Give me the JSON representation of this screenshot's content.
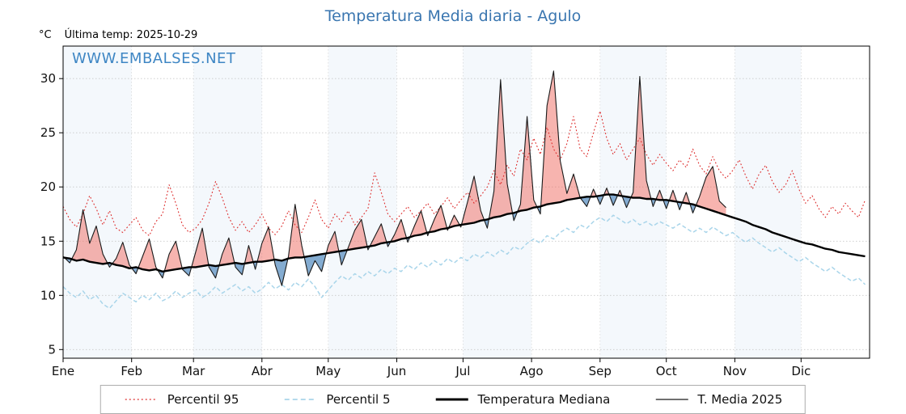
{
  "header": {
    "title": "Temperatura Media diaria - Agulo",
    "unit": "°C",
    "last_temp": "Última temp: 2025-10-29",
    "watermark": "WWW.EMBALSES.NET"
  },
  "colors": {
    "title": "#3a76b0",
    "watermark": "#3e86c4",
    "percentil95": "#dd2c2c",
    "percentil5": "#a9d5ea",
    "mediana": "#000000",
    "t_media_2025": "#1a1a1a",
    "fill_above": "#ef6a5f",
    "fill_below": "#6f9ec9",
    "band": "#ecf4fa",
    "grid": "#c8c8c8",
    "axis": "#000000"
  },
  "legend": {
    "items": [
      {
        "label": "Percentil 95"
      },
      {
        "label": "Percentil 5"
      },
      {
        "label": "Temperatura Mediana"
      },
      {
        "label": "T. Media 2025"
      }
    ]
  },
  "chart_data": {
    "type": "line",
    "title": "Temperatura Media diaria - Agulo",
    "xlabel": "",
    "ylabel": "°C",
    "ylim": [
      4.2,
      33.0
    ],
    "yticks": [
      5,
      10,
      15,
      20,
      25,
      30
    ],
    "grid": true,
    "legend_position": "bottom",
    "x_unit": "day_of_year",
    "months": [
      "Ene",
      "Feb",
      "Mar",
      "Abr",
      "May",
      "Jun",
      "Jul",
      "Ago",
      "Sep",
      "Oct",
      "Nov",
      "Dic"
    ],
    "month_start_days": [
      0,
      31,
      59,
      90,
      120,
      151,
      181,
      212,
      243,
      273,
      304,
      334
    ],
    "step_days": 3,
    "series": [
      {
        "name": "Percentil 95",
        "style": "dotted",
        "color": "#dd2c2c",
        "values": [
          18.2,
          17.0,
          16.3,
          17.5,
          19.2,
          18.0,
          16.5,
          17.8,
          16.2,
          15.8,
          16.5,
          17.2,
          16.0,
          15.5,
          16.8,
          17.5,
          20.2,
          18.5,
          16.5,
          15.8,
          16.2,
          17.0,
          18.5,
          20.5,
          19.0,
          17.2,
          16.0,
          16.8,
          15.8,
          16.5,
          17.5,
          16.2,
          15.6,
          16.4,
          17.8,
          16.5,
          15.8,
          17.2,
          18.8,
          17.0,
          16.2,
          17.5,
          16.8,
          17.8,
          16.5,
          17.2,
          18.0,
          21.3,
          19.5,
          17.5,
          16.8,
          17.5,
          18.2,
          17.2,
          17.8,
          18.5,
          17.5,
          18.2,
          19.0,
          18.0,
          18.8,
          19.5,
          18.5,
          19.2,
          20.0,
          21.5,
          20.2,
          22.0,
          21.0,
          23.5,
          22.5,
          24.5,
          23.0,
          25.5,
          23.5,
          22.5,
          24.0,
          26.5,
          23.5,
          22.8,
          25.0,
          27.0,
          24.5,
          23.0,
          24.0,
          22.5,
          23.5,
          24.5,
          23.0,
          22.0,
          23.0,
          22.2,
          21.5,
          22.5,
          21.8,
          23.5,
          22.0,
          21.2,
          22.8,
          21.5,
          20.8,
          21.5,
          22.5,
          21.0,
          19.8,
          21.2,
          22.0,
          20.5,
          19.5,
          20.2,
          21.5,
          19.8,
          18.5,
          19.2,
          18.0,
          17.2,
          18.2,
          17.5,
          18.5,
          17.8,
          17.2,
          18.8
        ]
      },
      {
        "name": "Percentil 5",
        "style": "dashed",
        "color": "#a9d5ea",
        "values": [
          10.8,
          10.2,
          9.8,
          10.4,
          9.6,
          10.0,
          9.2,
          8.8,
          9.5,
          10.2,
          9.8,
          9.4,
          10.0,
          9.6,
          10.2,
          9.5,
          9.8,
          10.4,
          9.8,
          10.2,
          10.5,
          9.8,
          10.2,
          10.8,
          10.2,
          10.6,
          11.0,
          10.4,
          10.8,
          10.2,
          10.6,
          11.2,
          10.6,
          11.0,
          10.5,
          11.2,
          10.8,
          11.5,
          10.8,
          9.8,
          10.5,
          11.2,
          11.8,
          11.4,
          12.0,
          11.6,
          12.2,
          11.8,
          12.4,
          12.0,
          12.5,
          12.2,
          12.8,
          12.4,
          13.0,
          12.6,
          13.2,
          12.8,
          13.4,
          13.0,
          13.5,
          13.2,
          13.8,
          13.5,
          14.0,
          13.6,
          14.2,
          13.8,
          14.5,
          14.2,
          14.8,
          15.2,
          14.8,
          15.5,
          15.2,
          15.8,
          16.2,
          15.8,
          16.5,
          16.2,
          16.8,
          17.2,
          16.8,
          17.4,
          17.0,
          16.6,
          17.0,
          16.5,
          16.8,
          16.4,
          16.8,
          16.5,
          16.2,
          16.6,
          16.2,
          15.8,
          16.2,
          15.8,
          16.3,
          15.9,
          15.5,
          15.8,
          15.3,
          14.9,
          15.3,
          14.8,
          14.4,
          14.0,
          14.4,
          13.9,
          13.5,
          13.1,
          13.5,
          13.0,
          12.6,
          12.2,
          12.6,
          12.1,
          11.7,
          11.3,
          11.6,
          11.0
        ]
      },
      {
        "name": "Temperatura Mediana",
        "style": "solid-thick",
        "color": "#000000",
        "values": [
          13.5,
          13.4,
          13.2,
          13.3,
          13.1,
          13.0,
          12.9,
          13.0,
          12.8,
          12.7,
          12.5,
          12.6,
          12.4,
          12.3,
          12.4,
          12.2,
          12.3,
          12.4,
          12.5,
          12.6,
          12.6,
          12.7,
          12.8,
          12.7,
          12.8,
          12.9,
          13.0,
          12.9,
          13.0,
          13.1,
          13.1,
          13.2,
          13.3,
          13.2,
          13.4,
          13.5,
          13.5,
          13.6,
          13.7,
          13.8,
          13.9,
          14.0,
          14.1,
          14.2,
          14.3,
          14.4,
          14.5,
          14.6,
          14.8,
          14.9,
          15.0,
          15.2,
          15.3,
          15.5,
          15.6,
          15.8,
          15.9,
          16.1,
          16.2,
          16.4,
          16.5,
          16.6,
          16.7,
          16.9,
          17.0,
          17.2,
          17.3,
          17.5,
          17.6,
          17.8,
          17.9,
          18.1,
          18.2,
          18.4,
          18.5,
          18.6,
          18.8,
          18.9,
          19.0,
          19.1,
          19.1,
          19.2,
          19.3,
          19.3,
          19.2,
          19.1,
          19.0,
          19.0,
          18.9,
          18.9,
          18.8,
          18.8,
          18.7,
          18.6,
          18.5,
          18.4,
          18.2,
          18.0,
          17.8,
          17.6,
          17.4,
          17.2,
          17.0,
          16.8,
          16.5,
          16.3,
          16.1,
          15.8,
          15.6,
          15.4,
          15.2,
          15.0,
          14.8,
          14.7,
          14.5,
          14.3,
          14.2,
          14.0,
          13.9,
          13.8,
          13.7,
          13.6
        ]
      },
      {
        "name": "T. Media 2025",
        "style": "solid-thin",
        "color": "#1a1a1a",
        "ends_day": 300,
        "values": [
          13.6,
          13.0,
          14.2,
          17.9,
          14.8,
          16.4,
          13.8,
          12.6,
          13.4,
          14.9,
          12.8,
          12.0,
          13.6,
          15.2,
          12.6,
          11.6,
          13.8,
          15.0,
          12.4,
          11.8,
          14.0,
          16.2,
          12.6,
          11.6,
          13.8,
          15.3,
          12.6,
          11.9,
          14.6,
          12.4,
          14.8,
          16.3,
          12.8,
          10.9,
          13.6,
          18.4,
          14.6,
          11.8,
          13.2,
          12.2,
          14.6,
          15.9,
          12.8,
          14.4,
          16.0,
          17.0,
          14.2,
          15.4,
          16.6,
          14.5,
          15.6,
          17.0,
          14.9,
          16.4,
          17.8,
          15.5,
          17.0,
          18.3,
          16.0,
          17.4,
          16.3,
          18.6,
          21.0,
          17.8,
          16.2,
          19.6,
          29.9,
          20.3,
          16.9,
          18.4,
          26.5,
          18.8,
          17.5,
          27.5,
          30.7,
          22.4,
          19.4,
          21.2,
          19.0,
          18.2,
          19.8,
          18.4,
          19.9,
          18.3,
          19.7,
          18.1,
          19.5,
          30.2,
          20.6,
          18.2,
          19.7,
          18.0,
          19.7,
          17.9,
          19.5,
          17.6,
          19.1,
          20.9,
          21.9,
          18.7,
          18.1
        ]
      }
    ],
    "fill": {
      "above_median": "red shading where T. Media 2025 > Temperatura Mediana",
      "below_median": "blue shading where T. Media 2025 < Temperatura Mediana"
    }
  }
}
